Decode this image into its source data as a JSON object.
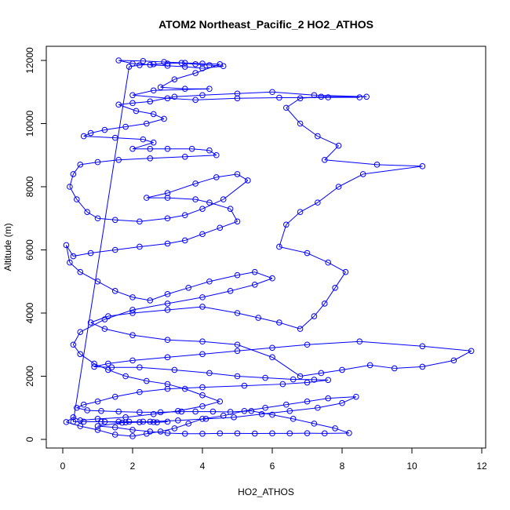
{
  "chart_data": {
    "type": "scatter",
    "title": "ATOM2 Northeast_Pacific_2 HO2_ATHOS",
    "xlabel": "HO2_ATHOS",
    "ylabel": "Altitude (m)",
    "xlim": [
      0,
      12
    ],
    "ylim": [
      0,
      12000
    ],
    "x_ticks": [
      "0",
      "2",
      "4",
      "6",
      "8",
      "10",
      "12"
    ],
    "y_ticks": [
      "0",
      "2000",
      "4000",
      "6000",
      "8000",
      "10000",
      "12000"
    ],
    "grid": false,
    "legend": "none",
    "marker": "open-circle",
    "connected": true,
    "color": "#0000ff",
    "series": [
      {
        "points": [
          [
            1.2,
            560
          ],
          [
            1.6,
            560
          ],
          [
            1.9,
            560
          ],
          [
            2.3,
            560
          ],
          [
            2.6,
            550
          ],
          [
            3.0,
            560
          ],
          [
            2.7,
            540
          ],
          [
            2.2,
            545
          ],
          [
            1.7,
            530
          ],
          [
            1.0,
            420
          ],
          [
            1.5,
            380
          ],
          [
            2.0,
            300
          ],
          [
            2.5,
            250
          ],
          [
            3.0,
            200
          ],
          [
            3.5,
            180
          ],
          [
            4.0,
            180
          ],
          [
            4.5,
            190
          ],
          [
            5.0,
            190
          ],
          [
            5.5,
            185
          ],
          [
            6.0,
            190
          ],
          [
            6.5,
            190
          ],
          [
            7.0,
            195
          ],
          [
            7.5,
            190
          ],
          [
            8.2,
            200
          ],
          [
            7.8,
            350
          ],
          [
            7.2,
            500
          ],
          [
            6.6,
            650
          ],
          [
            6.0,
            780
          ],
          [
            5.4,
            900
          ],
          [
            4.8,
            870
          ],
          [
            4.3,
            880
          ],
          [
            3.8,
            880
          ],
          [
            3.4,
            880
          ],
          [
            2.8,
            860
          ],
          [
            2.2,
            860
          ],
          [
            1.6,
            880
          ],
          [
            1.1,
            900
          ],
          [
            0.7,
            920
          ],
          [
            0.4,
            1000
          ],
          [
            0.6,
            1100
          ],
          [
            1.0,
            1200
          ],
          [
            1.5,
            1350
          ],
          [
            2.2,
            1500
          ],
          [
            3.0,
            1600
          ],
          [
            4.0,
            1650
          ],
          [
            5.2,
            1700
          ],
          [
            6.3,
            1750
          ],
          [
            7.0,
            1800
          ],
          [
            7.6,
            1880
          ],
          [
            7.2,
            1890
          ],
          [
            6.6,
            1900
          ],
          [
            5.8,
            1950
          ],
          [
            5.0,
            2000
          ],
          [
            4.2,
            2100
          ],
          [
            3.2,
            2200
          ],
          [
            2.2,
            2280
          ],
          [
            1.4,
            2280
          ],
          [
            0.9,
            2300
          ],
          [
            1.3,
            2400
          ],
          [
            2.0,
            2500
          ],
          [
            3.0,
            2600
          ],
          [
            4.0,
            2700
          ],
          [
            5.0,
            2800
          ],
          [
            6.0,
            2900
          ],
          [
            7.0,
            3000
          ],
          [
            8.5,
            3100
          ],
          [
            10.3,
            2950
          ],
          [
            11.7,
            2800
          ],
          [
            11.2,
            2500
          ],
          [
            10.3,
            2300
          ],
          [
            9.5,
            2250
          ],
          [
            8.8,
            2350
          ],
          [
            8.0,
            2200
          ],
          [
            7.4,
            2100
          ],
          [
            6.8,
            2000
          ],
          [
            6.0,
            2600
          ],
          [
            5.0,
            3000
          ],
          [
            4.0,
            3100
          ],
          [
            3.0,
            3150
          ],
          [
            2.0,
            3300
          ],
          [
            1.2,
            3500
          ],
          [
            0.8,
            3700
          ],
          [
            1.3,
            3900
          ],
          [
            2.0,
            4000
          ],
          [
            3.0,
            4100
          ],
          [
            4.0,
            4200
          ],
          [
            5.0,
            4000
          ],
          [
            5.6,
            3850
          ],
          [
            6.2,
            3700
          ],
          [
            6.8,
            3500
          ],
          [
            7.2,
            3900
          ],
          [
            7.5,
            4300
          ],
          [
            7.8,
            4800
          ],
          [
            8.1,
            5300
          ],
          [
            7.6,
            5600
          ],
          [
            7.0,
            5900
          ],
          [
            6.2,
            6100
          ],
          [
            6.4,
            6800
          ],
          [
            6.8,
            7200
          ],
          [
            7.3,
            7500
          ],
          [
            7.9,
            8000
          ],
          [
            8.6,
            8400
          ],
          [
            10.3,
            8650
          ],
          [
            9.0,
            8700
          ],
          [
            7.5,
            8850
          ],
          [
            7.9,
            9300
          ],
          [
            7.3,
            9600
          ],
          [
            6.8,
            10000
          ],
          [
            6.4,
            10500
          ],
          [
            6.8,
            10800
          ],
          [
            7.4,
            10850
          ],
          [
            8.7,
            10850
          ],
          [
            7.2,
            10900
          ],
          [
            6.0,
            11000
          ],
          [
            5.0,
            10950
          ],
          [
            4.0,
            10900
          ],
          [
            3.2,
            10850
          ],
          [
            2.5,
            10700
          ],
          [
            2.0,
            10650
          ],
          [
            1.6,
            10600
          ],
          [
            2.1,
            10400
          ],
          [
            2.6,
            10300
          ],
          [
            2.9,
            10150
          ],
          [
            2.4,
            10000
          ],
          [
            1.8,
            9900
          ],
          [
            1.2,
            9800
          ],
          [
            0.8,
            9700
          ],
          [
            0.6,
            9600
          ],
          [
            1.5,
            9550
          ],
          [
            2.3,
            9500
          ],
          [
            2.6,
            9400
          ],
          [
            2.0,
            9200
          ],
          [
            2.5,
            9200
          ],
          [
            3.0,
            9200
          ],
          [
            3.7,
            9200
          ],
          [
            4.2,
            9150
          ],
          [
            4.4,
            9000
          ],
          [
            3.5,
            8950
          ],
          [
            2.5,
            8900
          ],
          [
            1.6,
            8850
          ],
          [
            1.0,
            8780
          ],
          [
            0.5,
            8700
          ],
          [
            0.3,
            8400
          ],
          [
            0.2,
            8000
          ],
          [
            0.4,
            7600
          ],
          [
            0.7,
            7200
          ],
          [
            1.0,
            7000
          ],
          [
            1.5,
            6950
          ],
          [
            2.2,
            6900
          ],
          [
            3.0,
            7000
          ],
          [
            3.5,
            7100
          ],
          [
            4.0,
            7300
          ],
          [
            4.6,
            7600
          ],
          [
            5.3,
            8200
          ],
          [
            5.0,
            8400
          ],
          [
            4.4,
            8300
          ],
          [
            3.8,
            8100
          ],
          [
            3.0,
            7800
          ],
          [
            2.4,
            7650
          ],
          [
            3.0,
            7650
          ],
          [
            3.8,
            7600
          ],
          [
            4.2,
            7500
          ],
          [
            4.8,
            7300
          ],
          [
            5.0,
            6900
          ],
          [
            4.5,
            6700
          ],
          [
            4.0,
            6500
          ],
          [
            3.5,
            6300
          ],
          [
            3.0,
            6200
          ],
          [
            2.2,
            6100
          ],
          [
            1.5,
            6000
          ],
          [
            0.8,
            5900
          ],
          [
            0.3,
            5800
          ],
          [
            0.1,
            6150
          ],
          [
            0.2,
            5600
          ],
          [
            0.5,
            5300
          ],
          [
            1.0,
            5000
          ],
          [
            1.5,
            4700
          ],
          [
            2.0,
            4500
          ],
          [
            2.5,
            4400
          ],
          [
            3.0,
            4600
          ],
          [
            3.6,
            4800
          ],
          [
            4.2,
            5000
          ],
          [
            5.0,
            5200
          ],
          [
            5.5,
            5300
          ],
          [
            6.0,
            5100
          ],
          [
            5.5,
            4900
          ],
          [
            4.8,
            4700
          ],
          [
            4.0,
            4500
          ],
          [
            3.0,
            4300
          ],
          [
            2.0,
            4100
          ],
          [
            1.2,
            3800
          ],
          [
            0.5,
            3400
          ],
          [
            0.3,
            3000
          ],
          [
            0.5,
            2700
          ],
          [
            0.9,
            2400
          ],
          [
            1.3,
            2200
          ],
          [
            1.8,
            2000
          ],
          [
            2.4,
            1850
          ],
          [
            3.0,
            1750
          ],
          [
            3.5,
            1600
          ],
          [
            4.0,
            1400
          ],
          [
            4.5,
            1200
          ],
          [
            4.0,
            1050
          ],
          [
            3.3,
            900
          ],
          [
            2.6,
            800
          ],
          [
            1.8,
            700
          ],
          [
            1.0,
            650
          ],
          [
            0.5,
            600
          ],
          [
            0.3,
            700
          ],
          [
            0.1,
            550
          ],
          [
            0.5,
            420
          ],
          [
            1.0,
            300
          ],
          [
            1.5,
            150
          ],
          [
            2.0,
            100
          ],
          [
            2.4,
            180
          ],
          [
            2.8,
            250
          ],
          [
            3.2,
            350
          ],
          [
            3.6,
            500
          ],
          [
            4.0,
            650
          ],
          [
            4.6,
            750
          ],
          [
            5.2,
            900
          ],
          [
            5.8,
            1000
          ],
          [
            6.4,
            1100
          ],
          [
            7.0,
            1200
          ],
          [
            7.6,
            1300
          ],
          [
            8.4,
            1350
          ],
          [
            8.0,
            1150
          ],
          [
            7.3,
            1000
          ],
          [
            6.5,
            900
          ],
          [
            5.7,
            800
          ],
          [
            4.9,
            700
          ],
          [
            4.1,
            650
          ],
          [
            3.3,
            600
          ],
          [
            2.5,
            560
          ],
          [
            1.8,
            540
          ],
          [
            1.1,
            560
          ],
          [
            0.6,
            560
          ],
          [
            0.3,
            560
          ],
          [
            1.9,
            11800
          ],
          [
            2.2,
            11850
          ],
          [
            2.6,
            11880
          ],
          [
            3.0,
            11900
          ],
          [
            3.4,
            11920
          ],
          [
            3.8,
            11880
          ],
          [
            4.2,
            11850
          ],
          [
            4.6,
            11820
          ],
          [
            4.0,
            11750
          ],
          [
            3.5,
            11800
          ],
          [
            3.0,
            11830
          ],
          [
            2.5,
            11860
          ],
          [
            2.0,
            11900
          ],
          [
            1.6,
            12000
          ],
          [
            2.3,
            11980
          ],
          [
            2.9,
            11950
          ],
          [
            3.5,
            11920
          ],
          [
            4.0,
            11900
          ],
          [
            4.5,
            11880
          ],
          [
            3.8,
            11600
          ],
          [
            3.2,
            11400
          ],
          [
            2.8,
            11150
          ],
          [
            3.5,
            11100
          ],
          [
            4.2,
            11100
          ],
          [
            2.6,
            11050
          ],
          [
            2.0,
            10900
          ],
          [
            3.0,
            10800
          ],
          [
            3.8,
            10750
          ],
          [
            5.0,
            10800
          ],
          [
            6.2,
            10820
          ],
          [
            7.6,
            10830
          ],
          [
            8.5,
            10830
          ]
        ]
      }
    ]
  }
}
